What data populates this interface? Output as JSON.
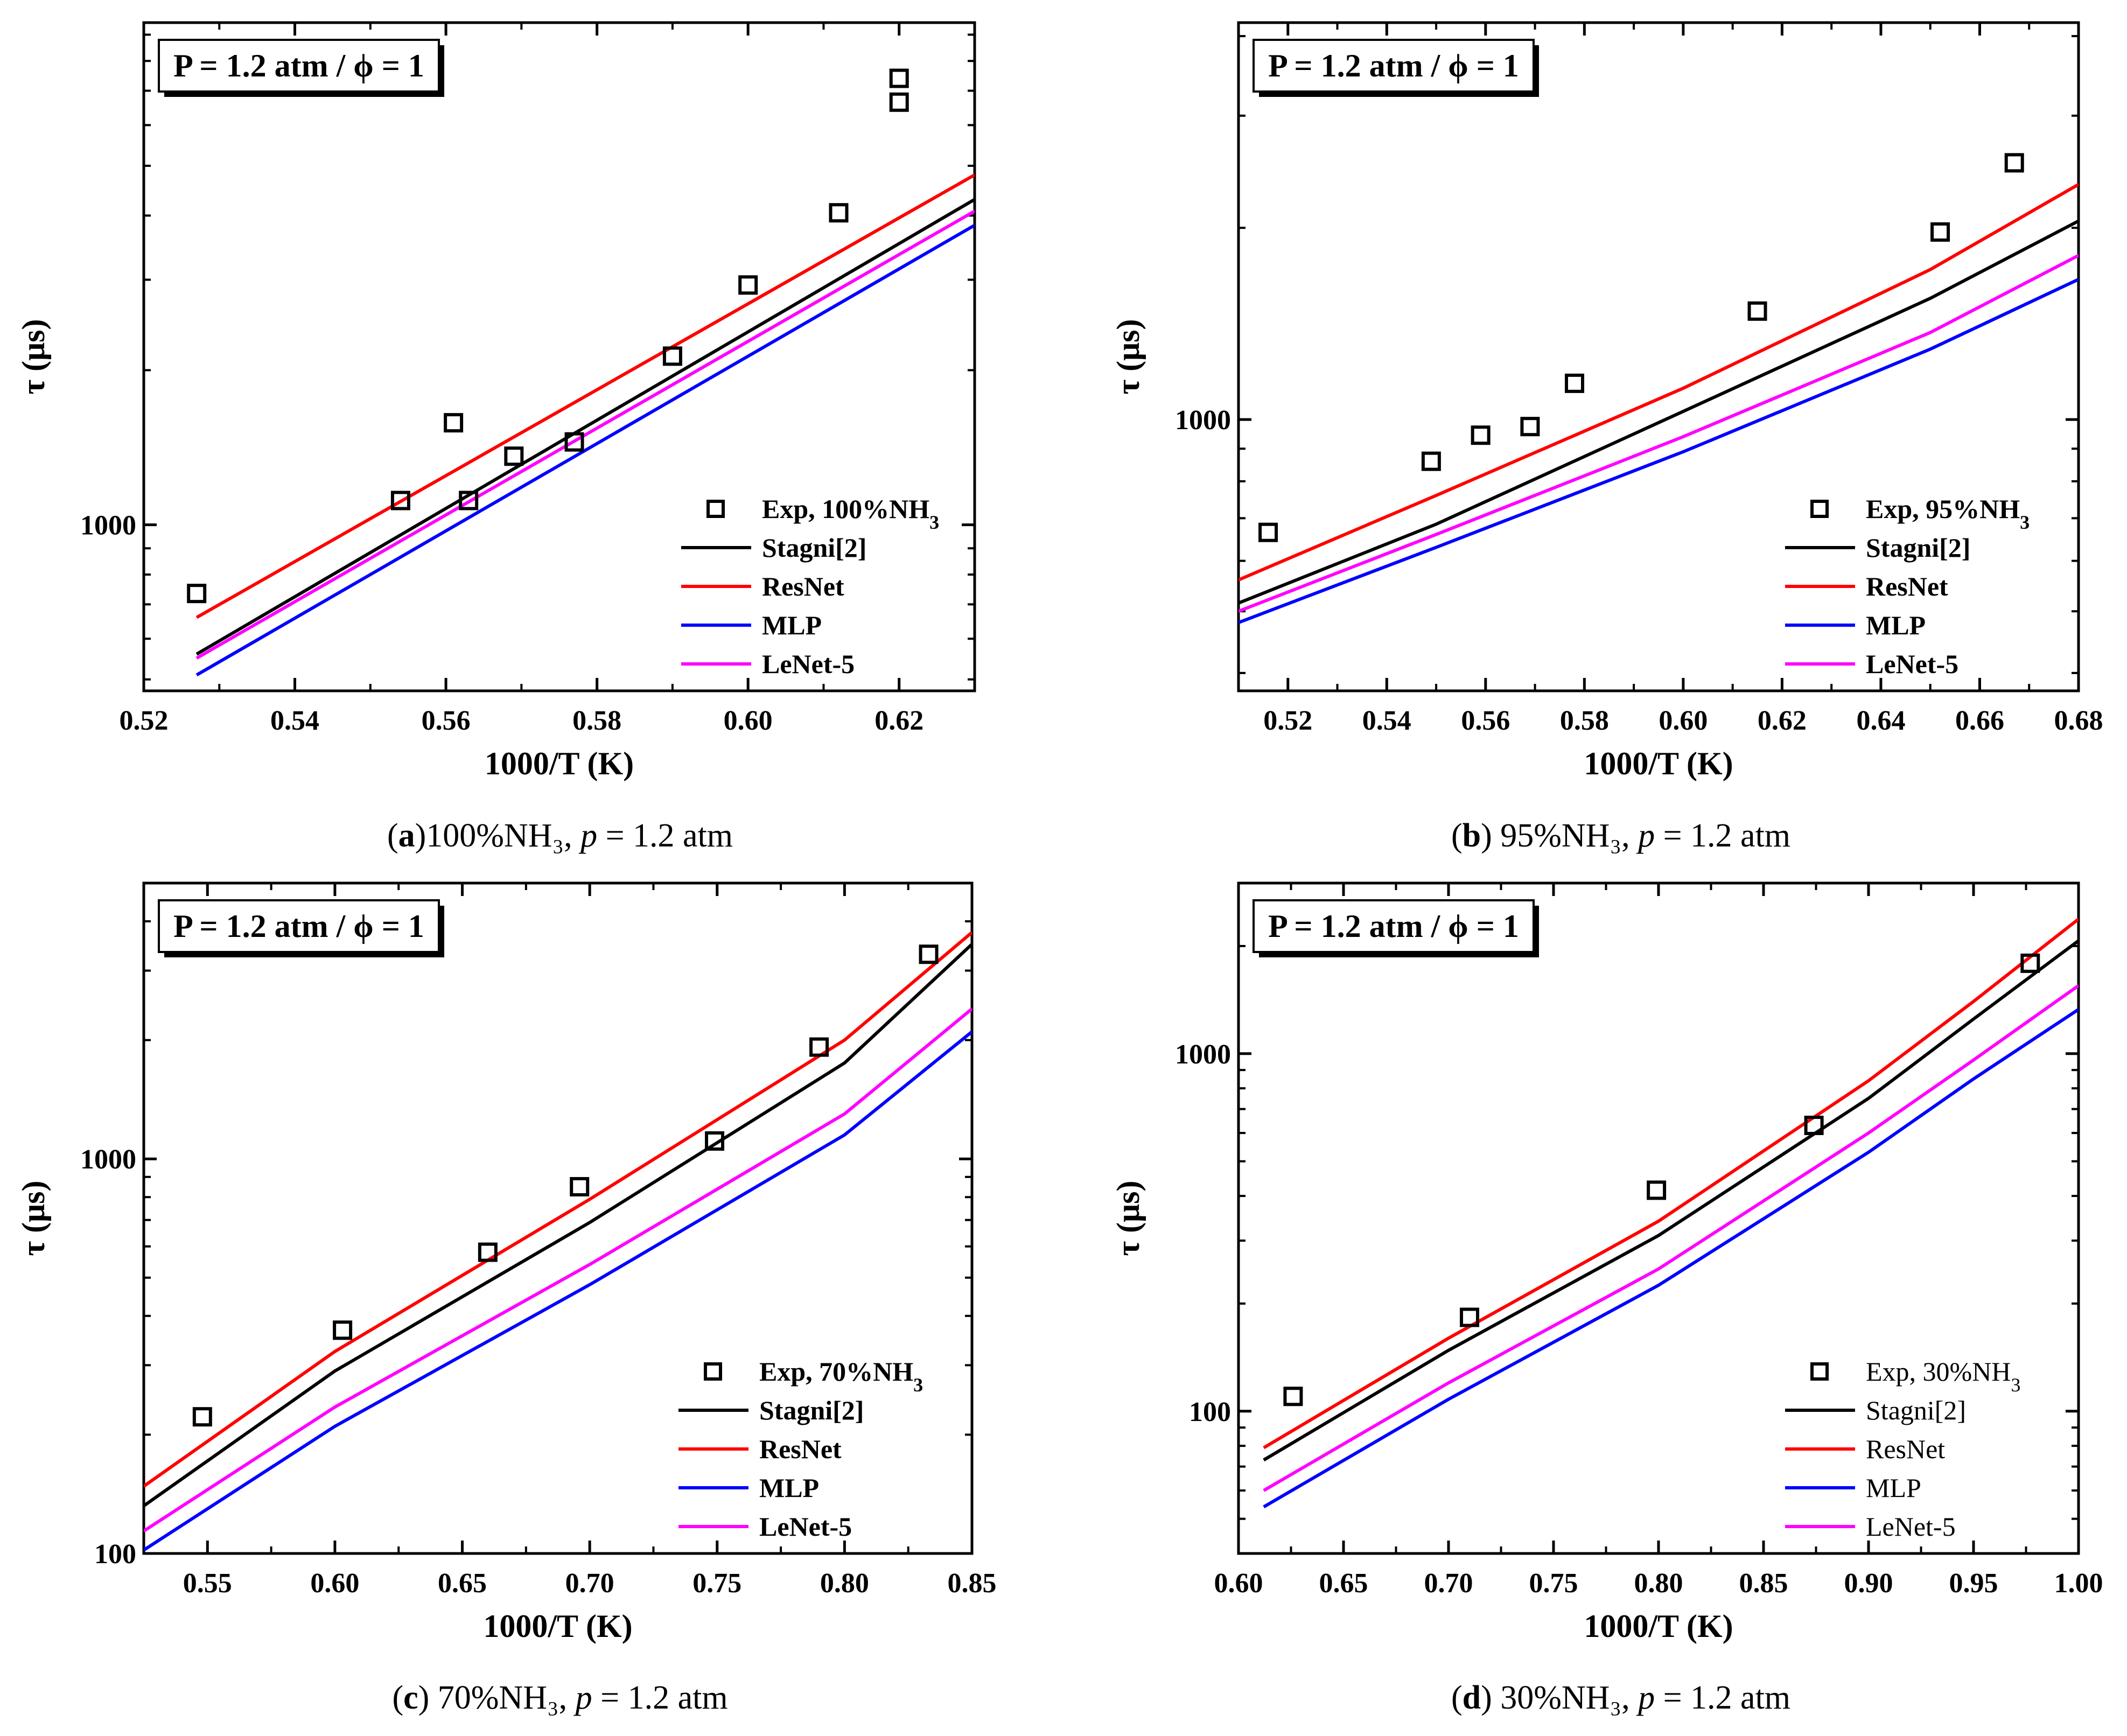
{
  "chart_data": [
    {
      "type": "scatter",
      "panel": "a",
      "annotation": "P = 1.2 atm / ϕ = 1",
      "xlabel": "1000/T (K)",
      "ylabel": "τ (μs)",
      "xlim": [
        0.52,
        0.63
      ],
      "ylim": [
        475,
        9500
      ],
      "yscale": "log",
      "xticks": [
        "0.52",
        "0.54",
        "0.56",
        "0.58",
        "0.60",
        "0.62"
      ],
      "yticks": [
        "1000"
      ],
      "legend_position": "bottom-right",
      "legend_bold": true,
      "series": [
        {
          "name": "Exp, 100%NH3",
          "kind": "markers",
          "color": "#000000",
          "x": [
            0.527,
            0.554,
            0.561,
            0.563,
            0.569,
            0.577,
            0.59,
            0.6,
            0.612,
            0.62,
            0.62
          ],
          "y": [
            735,
            1115,
            1580,
            1115,
            1360,
            1450,
            2130,
            2930,
            4050,
            6650,
            7400
          ]
        },
        {
          "name": "Stagni[2]",
          "kind": "line",
          "color": "#000000",
          "x": [
            0.527,
            0.63
          ],
          "y": [
            560,
            4300
          ]
        },
        {
          "name": "ResNet",
          "kind": "line",
          "color": "#ff0000",
          "x": [
            0.527,
            0.63
          ],
          "y": [
            660,
            4800
          ]
        },
        {
          "name": "MLP",
          "kind": "line",
          "color": "#0000ff",
          "x": [
            0.527,
            0.63
          ],
          "y": [
            510,
            3830
          ]
        },
        {
          "name": "LeNet-5",
          "kind": "line",
          "color": "#ff00ff",
          "x": [
            0.527,
            0.63
          ],
          "y": [
            550,
            4080
          ]
        }
      ],
      "caption": {
        "letter": "a",
        "text": "100%NH₃, ",
        "p": "p",
        "rest": " = 1.2 atm"
      }
    },
    {
      "type": "scatter",
      "panel": "b",
      "annotation": "P = 1.2 atm / ϕ = 1",
      "xlabel": "1000/T (K)",
      "ylabel": "τ (μs)",
      "xlim": [
        0.51,
        0.68
      ],
      "ylim": [
        375,
        4200
      ],
      "yscale": "log",
      "xticks": [
        "0.52",
        "0.54",
        "0.56",
        "0.58",
        "0.60",
        "0.62",
        "0.64",
        "0.66",
        "0.68"
      ],
      "yticks": [
        "1000"
      ],
      "legend_position": "bottom-right",
      "legend_bold": true,
      "series": [
        {
          "name": "Exp, 95%NH3",
          "kind": "markers",
          "color": "#000000",
          "x": [
            0.516,
            0.549,
            0.559,
            0.569,
            0.578,
            0.615,
            0.652,
            0.667
          ],
          "y": [
            665,
            860,
            945,
            975,
            1140,
            1480,
            1970,
            2530
          ]
        },
        {
          "name": "Stagni[2]",
          "kind": "line",
          "color": "#000000",
          "x": [
            0.51,
            0.55,
            0.6,
            0.65,
            0.68
          ],
          "y": [
            515,
            685,
            1030,
            1550,
            2050
          ]
        },
        {
          "name": "ResNet",
          "kind": "line",
          "color": "#ff0000",
          "x": [
            0.51,
            0.55,
            0.6,
            0.65,
            0.68
          ],
          "y": [
            560,
            760,
            1120,
            1720,
            2340
          ]
        },
        {
          "name": "MLP",
          "kind": "line",
          "color": "#0000ff",
          "x": [
            0.51,
            0.55,
            0.6,
            0.65,
            0.68
          ],
          "y": [
            480,
            630,
            890,
            1290,
            1660
          ]
        },
        {
          "name": "LeNet-5",
          "kind": "line",
          "color": "#ff00ff",
          "x": [
            0.51,
            0.55,
            0.6,
            0.65,
            0.68
          ],
          "y": [
            500,
            660,
            940,
            1370,
            1810
          ]
        }
      ],
      "caption": {
        "letter": "b",
        "text": " 95%NH₃, ",
        "p": "p",
        "rest": " = 1.2 atm"
      }
    },
    {
      "type": "scatter",
      "panel": "c",
      "annotation": "P = 1.2 atm / ϕ = 1",
      "xlabel": "1000/T (K)",
      "ylabel": "τ (μs)",
      "xlim": [
        0.525,
        0.85
      ],
      "ylim": [
        100,
        5000
      ],
      "yscale": "log",
      "xticks": [
        "0.55",
        "0.60",
        "0.65",
        "0.70",
        "0.75",
        "0.80",
        "0.85"
      ],
      "yticks": [
        "100",
        "1000"
      ],
      "legend_position": "bottom-right",
      "legend_bold": true,
      "series": [
        {
          "name": "Exp, 70%NH3",
          "kind": "markers",
          "color": "#000000",
          "x": [
            0.548,
            0.603,
            0.66,
            0.696,
            0.749,
            0.79,
            0.833
          ],
          "y": [
            222,
            368,
            580,
            850,
            1110,
            1920,
            3300
          ]
        },
        {
          "name": "Stagni[2]",
          "kind": "line",
          "color": "#000000",
          "x": [
            0.525,
            0.6,
            0.7,
            0.8,
            0.85
          ],
          "y": [
            132,
            290,
            690,
            1750,
            3500
          ]
        },
        {
          "name": "ResNet",
          "kind": "line",
          "color": "#ff0000",
          "x": [
            0.525,
            0.6,
            0.7,
            0.8,
            0.85
          ],
          "y": [
            148,
            325,
            790,
            2000,
            3750
          ]
        },
        {
          "name": "MLP",
          "kind": "line",
          "color": "#0000ff",
          "x": [
            0.525,
            0.6,
            0.7,
            0.8,
            0.85
          ],
          "y": [
            102,
            210,
            480,
            1150,
            2100
          ]
        },
        {
          "name": "LeNet-5",
          "kind": "line",
          "color": "#ff00ff",
          "x": [
            0.525,
            0.6,
            0.7,
            0.8,
            0.85
          ],
          "y": [
            114,
            235,
            540,
            1300,
            2400
          ]
        }
      ],
      "caption": {
        "letter": "c",
        "text": " 70%NH₃, ",
        "p": "p",
        "rest": " = 1.2 atm"
      }
    },
    {
      "type": "scatter",
      "panel": "d",
      "annotation": "P = 1.2 atm / ϕ = 1",
      "xlabel": "1000/T (K)",
      "ylabel": "τ (μs)",
      "xlim": [
        0.6,
        1.0
      ],
      "ylim": [
        40,
        3000
      ],
      "yscale": "log",
      "xticks": [
        "0.60",
        "0.65",
        "0.70",
        "0.75",
        "0.80",
        "0.85",
        "0.90",
        "0.95",
        "1.00"
      ],
      "yticks": [
        "100",
        "1000"
      ],
      "legend_position": "bottom-right",
      "legend_bold": false,
      "series": [
        {
          "name": "Exp, 30%NH3",
          "kind": "markers",
          "color": "#000000",
          "x": [
            0.626,
            0.71,
            0.799,
            0.874,
            0.977
          ],
          "y": [
            110,
            183,
            415,
            630,
            1790
          ]
        },
        {
          "name": "Stagni[2]",
          "kind": "line",
          "color": "#000000",
          "x": [
            0.612,
            0.7,
            0.8,
            0.9,
            0.95,
            1.0
          ],
          "y": [
            73,
            148,
            310,
            750,
            1250,
            2070
          ]
        },
        {
          "name": "ResNet",
          "kind": "line",
          "color": "#ff0000",
          "x": [
            0.612,
            0.7,
            0.8,
            0.9,
            0.95,
            1.0
          ],
          "y": [
            79,
            160,
            340,
            840,
            1400,
            2380
          ]
        },
        {
          "name": "MLP",
          "kind": "line",
          "color": "#0000ff",
          "x": [
            0.612,
            0.7,
            0.8,
            0.9,
            0.95,
            1.0
          ],
          "y": [
            54,
            108,
            225,
            530,
            850,
            1330
          ]
        },
        {
          "name": "LeNet-5",
          "kind": "line",
          "color": "#ff00ff",
          "x": [
            0.612,
            0.7,
            0.8,
            0.9,
            0.95,
            1.0
          ],
          "y": [
            60,
            120,
            250,
            600,
            960,
            1550
          ]
        }
      ],
      "caption": {
        "letter": "d",
        "text": " 30%NH₃, ",
        "p": "p",
        "rest": " = 1.2 atm"
      }
    }
  ]
}
